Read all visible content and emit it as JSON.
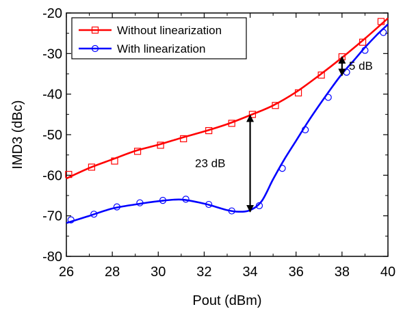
{
  "chart_data": {
    "type": "line",
    "xlabel": "Pout (dBm)",
    "ylabel": "IMD3 (dBc)",
    "xlim": [
      26,
      40
    ],
    "ylim": [
      -80,
      -20
    ],
    "xticks": [
      "26",
      "28",
      "30",
      "32",
      "34",
      "36",
      "38",
      "40"
    ],
    "yticks": [
      "-80",
      "-70",
      "-60",
      "-50",
      "-40",
      "-30",
      "-20"
    ],
    "grid": false,
    "legend_position": "top-left",
    "series": [
      {
        "name": "Without linearization",
        "color": "#ff0000",
        "marker": "square",
        "curve": {
          "x": [
            26,
            27,
            28,
            29,
            30,
            31,
            32,
            33,
            34,
            35,
            36,
            37,
            38,
            39,
            40
          ],
          "y": [
            -60.8,
            -58.2,
            -56.1,
            -54.0,
            -52.5,
            -50.8,
            -49.2,
            -47.4,
            -45.2,
            -42.8,
            -39.5,
            -35.4,
            -31.0,
            -26.3,
            -21.3
          ]
        },
        "points": {
          "x": [
            26.1,
            27.1,
            28.1,
            29.1,
            30.1,
            31.1,
            32.2,
            33.2,
            34.1,
            35.1,
            36.1,
            37.1,
            38.0,
            38.9,
            39.7
          ],
          "y": [
            -59.8,
            -58.0,
            -56.5,
            -54.1,
            -52.6,
            -51.0,
            -49.0,
            -47.2,
            -45.0,
            -42.8,
            -39.7,
            -35.3,
            -30.8,
            -27.2,
            -22.1
          ]
        }
      },
      {
        "name": "With linearization",
        "color": "#0000ff",
        "marker": "circle",
        "curve": {
          "x": [
            26,
            27,
            28,
            29,
            30,
            31,
            32,
            33,
            33.5,
            34,
            34.5,
            35,
            35.5,
            36,
            36.5,
            37,
            37.5,
            38,
            38.5,
            39,
            39.5,
            40
          ],
          "y": [
            -71.8,
            -70.0,
            -68.2,
            -67.2,
            -66.4,
            -66.0,
            -67.0,
            -68.6,
            -69.0,
            -68.6,
            -66.4,
            -61.0,
            -56.0,
            -51.5,
            -47.0,
            -42.8,
            -38.8,
            -35.0,
            -31.8,
            -28.5,
            -25.5,
            -22.8
          ]
        },
        "points": {
          "x": [
            26.2,
            27.2,
            28.2,
            29.2,
            30.2,
            31.2,
            32.2,
            33.2,
            34.4,
            35.4,
            36.4,
            37.4,
            38.2,
            39.0,
            39.8
          ],
          "y": [
            -71.0,
            -69.6,
            -67.8,
            -66.8,
            -66.2,
            -65.9,
            -67.2,
            -68.8,
            -67.5,
            -58.3,
            -48.8,
            -40.8,
            -34.6,
            -29.2,
            -24.8
          ]
        }
      }
    ],
    "annotations": [
      {
        "text": "23 dB",
        "x": 34,
        "y_from": -45.2,
        "y_to": -69.0,
        "label_x": 31.6,
        "label_y": -57.0
      },
      {
        "text": "5 dB",
        "x": 38,
        "y_from": -30.8,
        "y_to": -35.4,
        "label_x": 38.3,
        "label_y": -33.0
      }
    ]
  }
}
